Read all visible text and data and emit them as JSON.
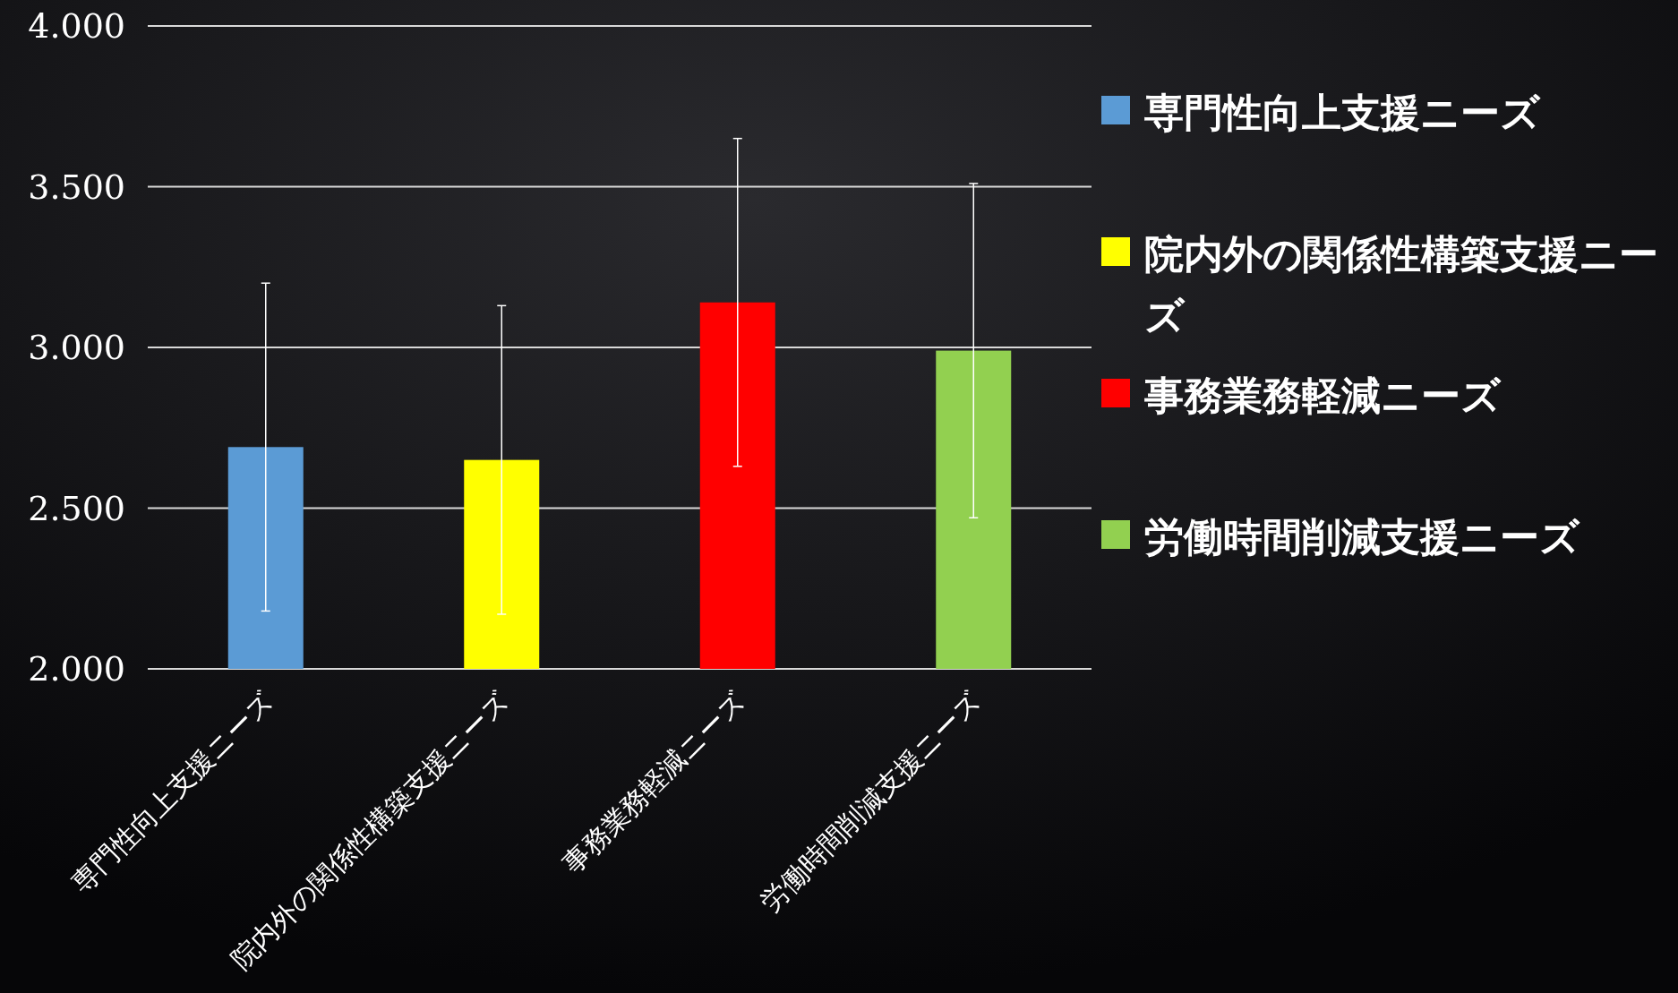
{
  "chart_data": {
    "type": "bar",
    "categories": [
      "専門性向上支援ニーズ",
      "院内外の関係性構築支援ニーズ",
      "事務業務軽減ニーズ",
      "労働時間削減支援ニーズ"
    ],
    "series": [
      {
        "name": "専門性向上支援ニーズ",
        "color": "#5b9bd5",
        "values": [
          2.69,
          null,
          null,
          null
        ],
        "errors": [
          0.51,
          null,
          null,
          null
        ]
      },
      {
        "name": "院内外の関係性構築支援ニーズ",
        "color": "#ffff00",
        "values": [
          null,
          2.65,
          null,
          null
        ],
        "errors": [
          null,
          0.48,
          null,
          null
        ]
      },
      {
        "name": "事務業務軽減ニーズ",
        "color": "#ff0000",
        "values": [
          null,
          null,
          3.14,
          null
        ],
        "errors": [
          null,
          null,
          0.51,
          null
        ]
      },
      {
        "name": "労働時間削減支援ニーズ",
        "color": "#92d050",
        "values": [
          null,
          null,
          null,
          2.99
        ],
        "errors": [
          null,
          null,
          null,
          0.52
        ]
      }
    ],
    "ylim": [
      2,
      4
    ],
    "yticks": [
      {
        "value": 2,
        "label": "2.000"
      },
      {
        "value": 2.5,
        "label": "2.500"
      },
      {
        "value": 3,
        "label": "3.000"
      },
      {
        "value": 3.5,
        "label": "3.500"
      },
      {
        "value": 4,
        "label": "4.000"
      }
    ],
    "grid": "y",
    "legend": "right"
  }
}
